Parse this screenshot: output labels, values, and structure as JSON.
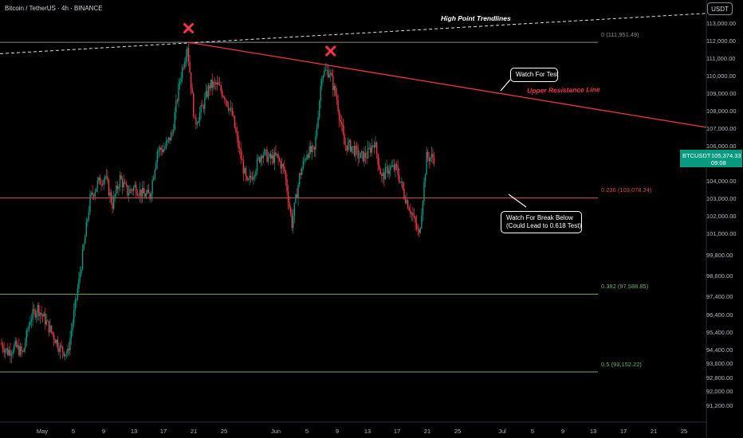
{
  "header": {
    "symbol_title": "Bitcoin / TetherUS · 4h · BINANCE",
    "currency": "USDT"
  },
  "price_axis": {
    "labels": [
      "113,000.00",
      "112,000.00",
      "111,000.00",
      "110,000.00",
      "109,000.00",
      "108,000.00",
      "107,000.00",
      "106,000.00",
      "104,000.00",
      "103,000.00",
      "102,000.00",
      "101,000.00",
      "99,800.00",
      "98,600.00",
      "97,400.00",
      "96,400.00",
      "95,400.00",
      "94,400.00",
      "93,600.00",
      "92,800.00",
      "92,000.00",
      "91,200.00"
    ]
  },
  "ticker_badge": {
    "symbol": "BTCUSDT",
    "price": "105,374.33",
    "countdown": "09:08"
  },
  "date_axis": {
    "labels": [
      "May",
      "5",
      "9",
      "13",
      "17",
      "21",
      "25",
      "Jun",
      "5",
      "9",
      "13",
      "17",
      "21",
      "25",
      "Jul",
      "5",
      "9",
      "13",
      "17",
      "21",
      "25"
    ]
  },
  "fib_levels": [
    {
      "label": "0 (111,951.49)",
      "color": "#8a8a8a"
    },
    {
      "label": "0.236 (103,078.24)",
      "color": "#d84848"
    },
    {
      "label": "0.382 (97,588.85)",
      "color": "#6fae6f"
    },
    {
      "label": "0.5 (93,152.22)",
      "color": "#6fae6f"
    }
  ],
  "annotations": {
    "high_point_trendlines": "High Point Trendlines",
    "upper_resistance_line": "Upper Resistance Line",
    "watch_for_test": "Watch For Test",
    "watch_for_break_line1": "Watch For Break Below",
    "watch_for_break_line2": "(Could Lead to 0.618 Test)"
  },
  "colors": {
    "up": "#089981",
    "down": "#f23645",
    "resistance": "#f23645",
    "marker": "#f23645"
  },
  "chart_data": {
    "type": "candlestick",
    "title": "Bitcoin / TetherUS · 4h · BINANCE",
    "ylim": [
      90800,
      113800
    ],
    "x_ticks": [
      "May",
      "5",
      "9",
      "13",
      "17",
      "21",
      "25",
      "Jun",
      "5",
      "9",
      "13",
      "17",
      "21",
      "25",
      "Jul",
      "5",
      "9",
      "13",
      "17",
      "21",
      "25"
    ],
    "close_path": [
      [
        "Apr 27",
        94800
      ],
      [
        "Apr 28",
        94300
      ],
      [
        "Apr 29",
        94600
      ],
      [
        "Apr 30",
        94200
      ],
      [
        "May 1",
        96200
      ],
      [
        "May 2",
        96800
      ],
      [
        "May 3",
        96100
      ],
      [
        "May 4",
        95300
      ],
      [
        "May 5",
        94500
      ],
      [
        "May 6",
        94200
      ],
      [
        "May 7",
        96900
      ],
      [
        "May 8",
        99800
      ],
      [
        "May 9",
        103000
      ],
      [
        "May 10",
        103900
      ],
      [
        "May 11",
        104300
      ],
      [
        "May 12",
        102700
      ],
      [
        "May 13",
        104200
      ],
      [
        "May 14",
        103400
      ],
      [
        "May 15",
        103700
      ],
      [
        "May 16",
        103300
      ],
      [
        "May 17",
        103200
      ],
      [
        "May 18",
        105800
      ],
      [
        "May 19",
        105900
      ],
      [
        "May 20",
        106800
      ],
      [
        "May 21",
        109800
      ],
      [
        "May 22",
        111800
      ],
      [
        "May 23",
        107300
      ],
      [
        "May 24",
        108200
      ],
      [
        "May 25",
        109500
      ],
      [
        "May 26",
        109500
      ],
      [
        "May 27",
        108900
      ],
      [
        "May 28",
        107800
      ],
      [
        "May 29",
        105700
      ],
      [
        "May 30",
        103800
      ],
      [
        "May 31",
        104700
      ],
      [
        "Jun 1",
        105700
      ],
      [
        "Jun 2",
        105300
      ],
      [
        "Jun 3",
        105400
      ],
      [
        "Jun 4",
        104600
      ],
      [
        "Jun 5",
        101600
      ],
      [
        "Jun 6",
        104300
      ],
      [
        "Jun 7",
        105700
      ],
      [
        "Jun 8",
        105700
      ],
      [
        "Jun 9",
        110200
      ],
      [
        "Jun 10",
        110300
      ],
      [
        "Jun 11",
        108700
      ],
      [
        "Jun 12",
        106100
      ],
      [
        "Jun 13",
        106000
      ],
      [
        "Jun 14",
        105400
      ],
      [
        "Jun 15",
        105500
      ],
      [
        "Jun 16",
        106300
      ],
      [
        "Jun 17",
        104200
      ],
      [
        "Jun 18",
        104800
      ],
      [
        "Jun 19",
        104700
      ],
      [
        "Jun 20",
        103300
      ],
      [
        "Jun 21",
        102200
      ],
      [
        "Jun 22",
        100900
      ],
      [
        "Jun 23",
        105400
      ],
      [
        "Jun 24",
        105374
      ]
    ],
    "fib_levels": [
      111951.49,
      103078.24,
      97588.85,
      93152.22
    ],
    "high_point_trendline": [
      [
        "Apr 27",
        111300
      ],
      [
        "Jul 25",
        113600
      ]
    ],
    "upper_resistance_line": [
      [
        "May 22",
        111951
      ],
      [
        "Jul 25",
        107100
      ]
    ],
    "peak_markers": [
      [
        "May 22",
        112300
      ],
      [
        "Jun 10",
        111000
      ]
    ],
    "last_price": 105374.33
  }
}
